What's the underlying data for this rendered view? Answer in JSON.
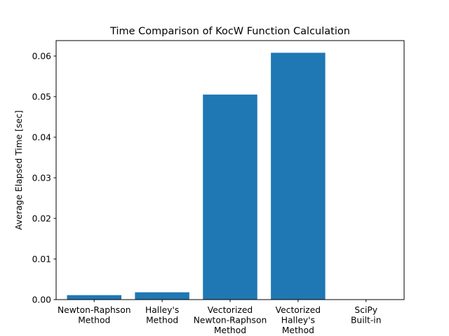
{
  "chart_data": {
    "type": "bar",
    "title": "Time Comparison of KocW Function Calculation",
    "xlabel": "",
    "ylabel": "Average Elapsed Time [sec]",
    "categories": [
      [
        "Newton-Raphson",
        "Method"
      ],
      [
        "Halley's",
        "Method"
      ],
      [
        "Vectorized",
        "Newton-Raphson",
        "Method"
      ],
      [
        "Vectorized",
        "Halley's",
        "Method"
      ],
      [
        "SciPy",
        "Built-in"
      ]
    ],
    "values": [
      0.0011,
      0.0018,
      0.0505,
      0.0608,
      3e-05
    ],
    "ylim": [
      0,
      0.0638
    ],
    "yticks": [
      0.0,
      0.01,
      0.02,
      0.03,
      0.04,
      0.05,
      0.06
    ],
    "ytick_labels": [
      "0.00",
      "0.01",
      "0.02",
      "0.03",
      "0.04",
      "0.05",
      "0.06"
    ],
    "bar_color": "#1f77b4",
    "grid": false,
    "legend": "none"
  }
}
